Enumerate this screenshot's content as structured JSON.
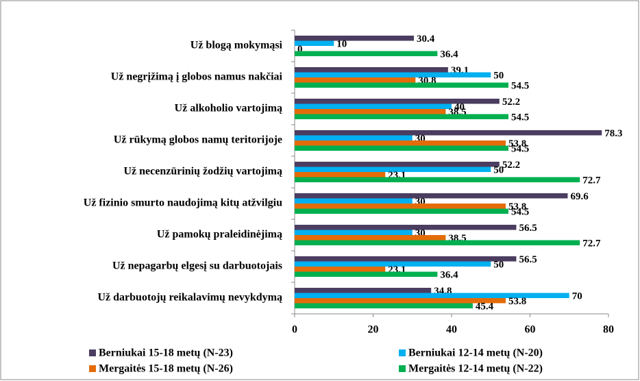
{
  "chart_data": {
    "type": "bar",
    "orientation": "horizontal",
    "categories": [
      "Už blogą mokymąsi",
      "Už negrįžimą į globos namus nakčiai",
      "Už alkoholio vartojimą",
      "Už rūkymą globos namų teritorijoje",
      "Už necenzūrinių žodžių vartojimą",
      "Už fizinio smurto naudojimą kitų atžvilgiu",
      "Už pamokų praleidinėjimą",
      "Už nepagarbų elgesį su darbuotojais",
      "Už darbuotojų reikalavimų nevykdymą"
    ],
    "series": [
      {
        "name": "Berniukai 15-18 metų (N-23)",
        "color": "#4b3d60",
        "values": [
          30.4,
          39.1,
          52.2,
          78.3,
          52.2,
          69.6,
          56.5,
          56.5,
          34.8
        ]
      },
      {
        "name": "Berniukai 12-14 metų (N-20)",
        "color": "#00b0f0",
        "values": [
          10,
          50,
          40,
          30,
          50,
          30,
          30,
          50,
          70
        ]
      },
      {
        "name": "Mergaitės 15-18 metų (N-26)",
        "color": "#e36c09",
        "values": [
          0,
          30.8,
          38.5,
          53.8,
          23.1,
          53.8,
          38.5,
          23.1,
          53.8
        ]
      },
      {
        "name": "Mergaitės 12-14 metų (N-22)",
        "color": "#00b050",
        "values": [
          36.4,
          54.5,
          54.5,
          54.5,
          72.7,
          54.5,
          72.7,
          36.4,
          45.4
        ]
      }
    ],
    "xlim": [
      0,
      80
    ],
    "xticks": [
      0,
      20,
      40,
      60,
      80
    ],
    "grid": false,
    "legend": "bottom"
  }
}
